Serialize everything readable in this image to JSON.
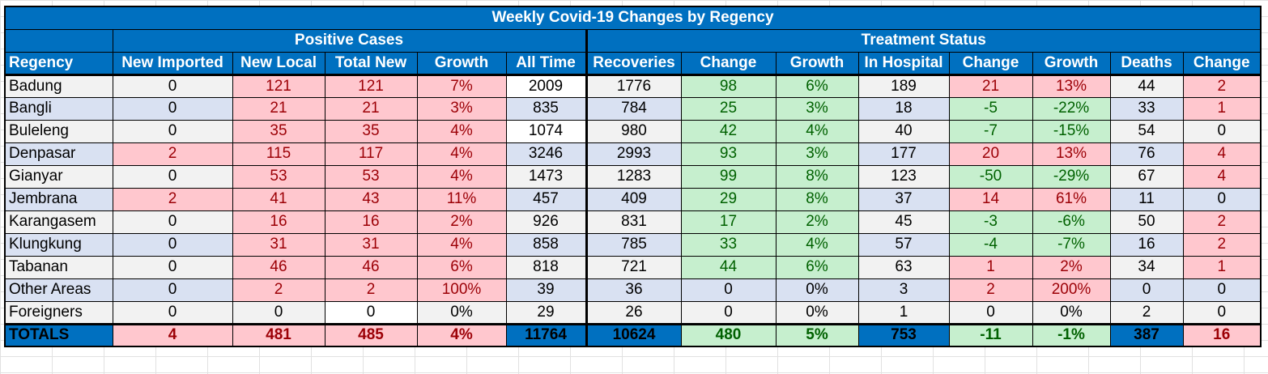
{
  "title": "Weekly Covid-19 Changes by Regency",
  "groups": {
    "positive": "Positive Cases",
    "treatment": "Treatment Status"
  },
  "headers": [
    "Regency",
    "New Imported",
    "New Local",
    "Total New",
    "Growth",
    "All Time",
    "Recoveries",
    "Change",
    "Growth",
    "In Hospital",
    "Change",
    "Growth",
    "Deaths",
    "Change"
  ],
  "rows": [
    [
      "Badung",
      "0",
      "121",
      "121",
      "7%",
      "2009",
      "1776",
      "98",
      "6%",
      "189",
      "21",
      "13%",
      "44",
      "2"
    ],
    [
      "Bangli",
      "0",
      "21",
      "21",
      "3%",
      "835",
      "784",
      "25",
      "3%",
      "18",
      "-5",
      "-22%",
      "33",
      "1"
    ],
    [
      "Buleleng",
      "0",
      "35",
      "35",
      "4%",
      "1074",
      "980",
      "42",
      "4%",
      "40",
      "-7",
      "-15%",
      "54",
      "0"
    ],
    [
      "Denpasar",
      "2",
      "115",
      "117",
      "4%",
      "3246",
      "2993",
      "93",
      "3%",
      "177",
      "20",
      "13%",
      "76",
      "4"
    ],
    [
      "Gianyar",
      "0",
      "53",
      "53",
      "4%",
      "1473",
      "1283",
      "99",
      "8%",
      "123",
      "-50",
      "-29%",
      "67",
      "4"
    ],
    [
      "Jembrana",
      "2",
      "41",
      "43",
      "11%",
      "457",
      "409",
      "29",
      "8%",
      "37",
      "14",
      "61%",
      "11",
      "0"
    ],
    [
      "Karangasem",
      "0",
      "16",
      "16",
      "2%",
      "926",
      "831",
      "17",
      "2%",
      "45",
      "-3",
      "-6%",
      "50",
      "2"
    ],
    [
      "Klungkung",
      "0",
      "31",
      "31",
      "4%",
      "858",
      "785",
      "33",
      "4%",
      "57",
      "-4",
      "-7%",
      "16",
      "2"
    ],
    [
      "Tabanan",
      "0",
      "46",
      "46",
      "6%",
      "818",
      "721",
      "44",
      "6%",
      "63",
      "1",
      "2%",
      "34",
      "1"
    ],
    [
      "Other Areas",
      "0",
      "2",
      "2",
      "100%",
      "39",
      "36",
      "0",
      "0%",
      "3",
      "2",
      "200%",
      "0",
      "0"
    ],
    [
      "Foreigners",
      "0",
      "0",
      "0",
      "0%",
      "29",
      "26",
      "0",
      "0%",
      "1",
      "0",
      "0%",
      "2",
      "0"
    ]
  ],
  "styles": [
    [
      "",
      "",
      "pink",
      "pink",
      "pink",
      "white",
      "",
      "green",
      "green",
      "",
      "pink",
      "pink",
      "",
      "pink"
    ],
    [
      "",
      "",
      "pink",
      "pink",
      "pink",
      "",
      "",
      "green",
      "green",
      "",
      "green",
      "green",
      "",
      "pink"
    ],
    [
      "",
      "",
      "pink",
      "pink",
      "pink",
      "white",
      "",
      "green",
      "green",
      "",
      "green",
      "green",
      "",
      ""
    ],
    [
      "",
      "pink",
      "pink",
      "pink",
      "pink",
      "",
      "",
      "green",
      "green",
      "",
      "pink",
      "pink",
      "",
      "pink"
    ],
    [
      "",
      "",
      "pink",
      "pink",
      "pink",
      "",
      "",
      "green",
      "green",
      "",
      "green",
      "green",
      "",
      "pink"
    ],
    [
      "",
      "pink",
      "pink",
      "pink",
      "pink",
      "",
      "",
      "green",
      "green",
      "",
      "pink",
      "pink",
      "",
      ""
    ],
    [
      "",
      "",
      "pink",
      "pink",
      "pink",
      "",
      "",
      "green",
      "green",
      "",
      "green",
      "green",
      "",
      "pink"
    ],
    [
      "",
      "",
      "pink",
      "pink",
      "pink",
      "",
      "",
      "green",
      "green",
      "",
      "green",
      "green",
      "",
      "pink"
    ],
    [
      "",
      "",
      "pink",
      "pink",
      "pink",
      "",
      "",
      "green",
      "green",
      "",
      "pink",
      "pink",
      "",
      "pink"
    ],
    [
      "",
      "",
      "pink",
      "pink",
      "pink",
      "",
      "",
      "",
      "",
      "",
      "pink",
      "pink",
      "",
      ""
    ],
    [
      "",
      "",
      "",
      "white",
      "",
      "",
      "",
      "",
      "",
      "",
      "",
      "",
      "",
      ""
    ]
  ],
  "totals": [
    "TOTALS",
    "4",
    "481",
    "485",
    "4%",
    "11764",
    "10624",
    "480",
    "5%",
    "753",
    "-11",
    "-1%",
    "387",
    "16"
  ],
  "totals_styles": [
    "blue",
    "pink",
    "pink",
    "pink",
    "pink",
    "blue",
    "blue",
    "green",
    "green",
    "blue",
    "green",
    "green",
    "blue",
    "pink"
  ]
}
